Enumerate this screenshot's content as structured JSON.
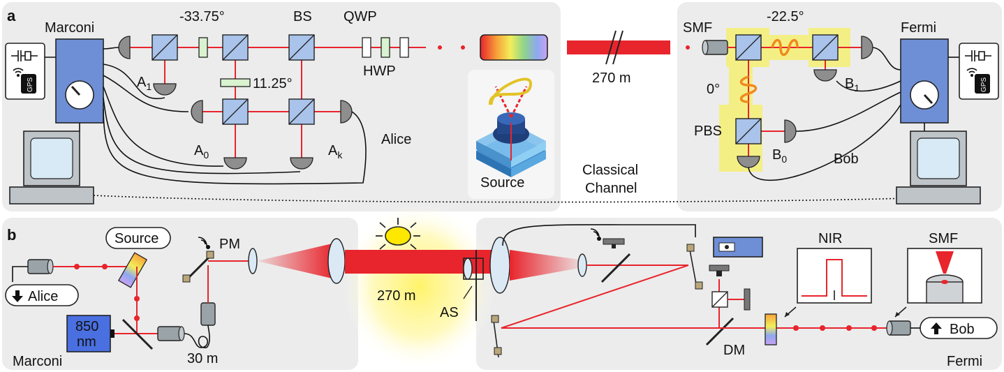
{
  "panel_a": {
    "tag": "a",
    "alice": {
      "station": "Marconi",
      "party": "Alice",
      "angle_hwp_1": "-33.75°",
      "angle_hwp_2": "11.25°",
      "bs": "BS",
      "qwp": "QWP",
      "hwp": "HWP",
      "det_a1": "A",
      "det_a1_sub": "1",
      "det_a0": "A",
      "det_a0_sub": "0",
      "det_ak": "A",
      "det_ak_sub": "k",
      "gps": "GPS"
    },
    "source": "Source",
    "channel_length": "270 m",
    "classical_channel_1": "Classical",
    "classical_channel_2": "Channel",
    "bob": {
      "station": "Fermi",
      "party": "Bob",
      "smf": "SMF",
      "angle_1": "-22.5°",
      "angle_0": "0°",
      "pbs": "PBS",
      "det_b1": "B",
      "det_b1_sub": "1",
      "det_b0": "B",
      "det_b0_sub": "0",
      "gps": "GPS"
    }
  },
  "panel_b": {
    "tag": "b",
    "source": "Source",
    "alice": "Alice",
    "laser_1": "850",
    "laser_2": "nm",
    "station_left": "Marconi",
    "fiber": "30 m",
    "pm": "PM",
    "distance": "270 m",
    "as": "AS",
    "dm": "DM",
    "nir": "NIR",
    "smf": "SMF",
    "bob": "Bob",
    "station_right": "Fermi"
  },
  "colors": {
    "beam": "#e8242c",
    "panel": "#ececec",
    "beamsplitter": "#a9c3ea",
    "time_tagger": "#6e8fd6",
    "highlight": "#f5ef7a"
  }
}
